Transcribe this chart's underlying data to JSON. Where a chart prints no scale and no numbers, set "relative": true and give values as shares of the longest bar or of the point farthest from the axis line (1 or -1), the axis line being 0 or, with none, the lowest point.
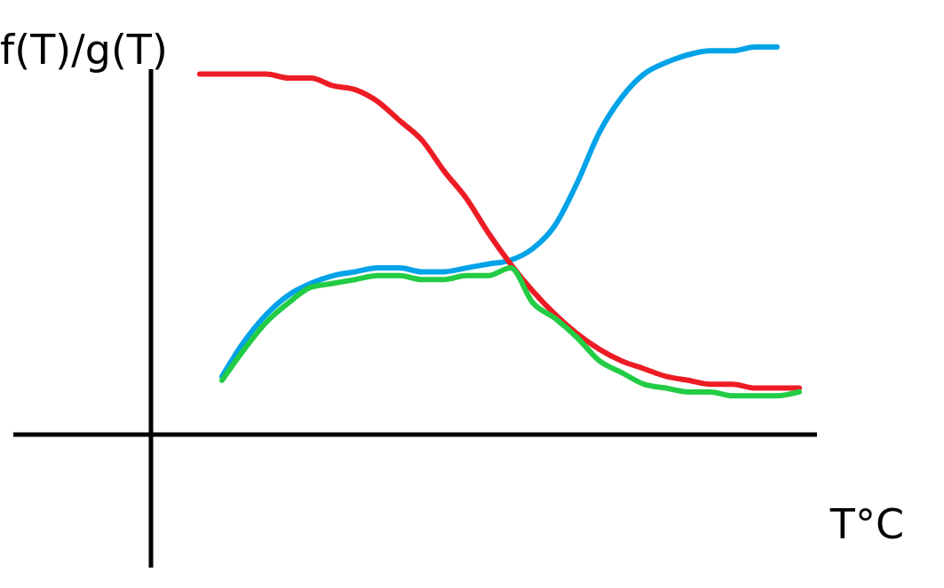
{
  "chart_data": {
    "type": "line",
    "relative": true,
    "xlabel": "T°C",
    "ylabel": "f(T)/g(T)",
    "marker": "none",
    "line_style": "solid",
    "categories": [
      null,
      null,
      null,
      null,
      null,
      null,
      null,
      null,
      null,
      null,
      null,
      null,
      null,
      null,
      null,
      null,
      null,
      null,
      null,
      null,
      null,
      null,
      null,
      null,
      null,
      null,
      null,
      null
    ],
    "series": [
      {
        "color": "#00a2e8",
        "values": [
          null,
          0.15,
          0.24,
          0.31,
          0.36,
          0.39,
          0.41,
          0.42,
          0.43,
          0.43,
          0.42,
          0.42,
          0.43,
          0.44,
          0.45,
          0.48,
          0.54,
          0.65,
          0.78,
          0.87,
          0.93,
          0.96,
          0.98,
          0.99,
          0.99,
          1.0,
          1.0,
          null
        ]
      },
      {
        "color": "#ed1c24",
        "values": [
          0.93,
          0.93,
          0.93,
          0.93,
          0.92,
          0.92,
          0.9,
          0.89,
          0.86,
          0.81,
          0.76,
          0.68,
          0.61,
          0.52,
          0.44,
          0.37,
          0.31,
          0.26,
          0.22,
          0.19,
          0.17,
          0.15,
          0.14,
          0.13,
          0.13,
          0.12,
          0.12,
          0.12
        ]
      },
      {
        "color": "#22cc44",
        "values": [
          null,
          0.14,
          0.22,
          0.29,
          0.34,
          0.38,
          0.39,
          0.4,
          0.41,
          0.41,
          0.4,
          0.4,
          0.41,
          0.41,
          0.43,
          0.34,
          0.3,
          0.25,
          0.19,
          0.16,
          0.13,
          0.12,
          0.11,
          0.11,
          0.1,
          0.1,
          0.1,
          0.11
        ]
      }
    ]
  }
}
